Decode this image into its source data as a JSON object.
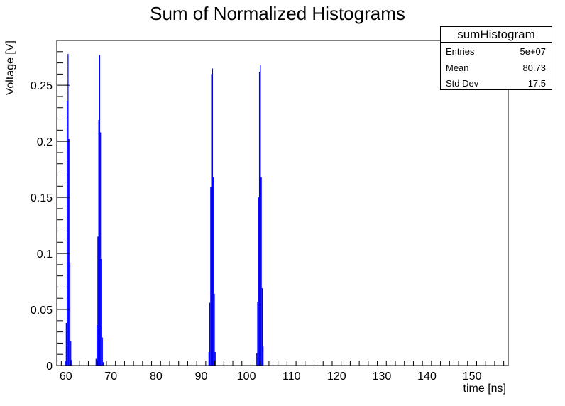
{
  "chart_data": {
    "type": "bar",
    "title": "Sum of Normalized Histograms",
    "xlabel": "time [ns]",
    "ylabel": "Voltage [V]",
    "xlim": [
      58,
      158
    ],
    "ylim": [
      0,
      0.29
    ],
    "xticks": [
      60,
      70,
      80,
      90,
      100,
      110,
      120,
      130,
      140,
      150
    ],
    "xtick_labels": [
      "60",
      "70",
      "80",
      "90",
      "100",
      "110",
      "120",
      "130",
      "140",
      "150"
    ],
    "yticks": [
      0,
      0.05,
      0.1,
      0.15,
      0.2,
      0.25
    ],
    "ytick_labels": [
      "0",
      "0.05",
      "0.1",
      "0.15",
      "0.2",
      "0.25"
    ],
    "bin_width": 0.2,
    "bar_color": "#0000ff",
    "series": [
      {
        "name": "sumHistogram",
        "bins": [
          {
            "x": 59.8,
            "y": 0.004
          },
          {
            "x": 60.0,
            "y": 0.038
          },
          {
            "x": 60.2,
            "y": 0.236
          },
          {
            "x": 60.4,
            "y": 0.278
          },
          {
            "x": 60.6,
            "y": 0.202
          },
          {
            "x": 60.8,
            "y": 0.092
          },
          {
            "x": 61.0,
            "y": 0.022
          },
          {
            "x": 61.2,
            "y": 0.005
          },
          {
            "x": 66.6,
            "y": 0.006
          },
          {
            "x": 66.8,
            "y": 0.036
          },
          {
            "x": 67.0,
            "y": 0.115
          },
          {
            "x": 67.2,
            "y": 0.219
          },
          {
            "x": 67.4,
            "y": 0.277
          },
          {
            "x": 67.6,
            "y": 0.208
          },
          {
            "x": 67.8,
            "y": 0.095
          },
          {
            "x": 68.0,
            "y": 0.025
          },
          {
            "x": 68.2,
            "y": 0.003
          },
          {
            "x": 91.6,
            "y": 0.012
          },
          {
            "x": 91.8,
            "y": 0.056
          },
          {
            "x": 92.0,
            "y": 0.159
          },
          {
            "x": 92.2,
            "y": 0.26
          },
          {
            "x": 92.4,
            "y": 0.265
          },
          {
            "x": 92.6,
            "y": 0.168
          },
          {
            "x": 92.8,
            "y": 0.064
          },
          {
            "x": 93.0,
            "y": 0.012
          },
          {
            "x": 102.2,
            "y": 0.011
          },
          {
            "x": 102.4,
            "y": 0.057
          },
          {
            "x": 102.6,
            "y": 0.15
          },
          {
            "x": 102.8,
            "y": 0.262
          },
          {
            "x": 103.0,
            "y": 0.268
          },
          {
            "x": 103.2,
            "y": 0.168
          },
          {
            "x": 103.4,
            "y": 0.069
          },
          {
            "x": 103.6,
            "y": 0.017
          }
        ]
      }
    ]
  },
  "stats": {
    "title": "sumHistogram",
    "rows": [
      {
        "label": "Entries",
        "value": "5e+07"
      },
      {
        "label": "Mean",
        "value": "80.73"
      },
      {
        "label": "Std Dev",
        "value": "17.5"
      }
    ]
  }
}
